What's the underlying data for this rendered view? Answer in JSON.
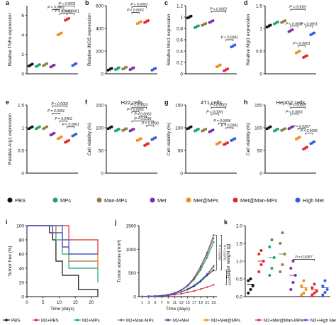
{
  "colors": {
    "PBS": "#111111",
    "MPs": "#1aa36e",
    "Man-MPs": "#8f7d3e",
    "Met": "#7b2fa6",
    "Met@MPs": "#f28c1f",
    "Met@Man-MPs": "#e3262d",
    "High Met": "#2f5fe0"
  },
  "legend_top": {
    "items": [
      {
        "key": "PBS",
        "label": "PBS"
      },
      {
        "key": "MPs",
        "label": "MPs"
      },
      {
        "key": "Man-MPs",
        "label": "Man-MPs"
      },
      {
        "key": "Met",
        "label": "Met"
      },
      {
        "key": "Met@MPs",
        "label": "Met@MPs"
      },
      {
        "key": "Met@Man-MPs",
        "label": "Met@Man-MPs"
      },
      {
        "key": "High Met",
        "label": "High Met"
      }
    ]
  },
  "legend_bottom": {
    "items": [
      {
        "key": "PBS",
        "label": "PBS"
      },
      {
        "key": "MPs",
        "label": "M2+PBS"
      },
      {
        "key": "Man-MPs",
        "label": "M2+MPs"
      },
      {
        "key": "Met",
        "label": "M2+Man-MPs"
      },
      {
        "key": "Met@MPs",
        "label": "M2+Met"
      },
      {
        "key": "Met@Man-MPs",
        "label": "M2+Met@MPs"
      },
      {
        "key": "High Met",
        "label": "M2+Met@Man-MPs"
      },
      {
        "key": "High Met",
        "label": "M2+High Met"
      }
    ]
  },
  "chart_data": [
    {
      "id": "a",
      "type": "scatter",
      "letter": "a",
      "title": "",
      "ylabel": "Relative TNFα expression",
      "ylim": [
        0,
        7
      ],
      "yticks": [
        0,
        2,
        4,
        6
      ],
      "values": [
        0.9,
        0.85,
        0.95,
        0.8,
        4.1,
        5.6,
        0.95
      ],
      "pvals": [
        {
          "from": 4,
          "to": 5,
          "level": 6.2,
          "text": "P < 0.0001"
        },
        {
          "from": 3,
          "to": 4,
          "level": 6.6,
          "text": "P < 0.0001"
        },
        {
          "from": 5,
          "to": 6,
          "level": 6.2,
          "text": "P < 0.0001"
        },
        {
          "from": 4,
          "to": 6,
          "level": 6.95,
          "text": "P < 0.0001"
        }
      ]
    },
    {
      "id": "b",
      "type": "scatter",
      "letter": "b",
      "title": "",
      "ylabel": "Relative iNOS expression",
      "ylim": [
        0,
        600
      ],
      "yticks": [
        0,
        200,
        400,
        600
      ],
      "values": [
        40,
        45,
        50,
        45,
        450,
        460,
        40
      ],
      "pvals": [
        {
          "from": 3,
          "to": 4,
          "level": 540,
          "text": "P < 0.0001"
        },
        {
          "from": 3,
          "to": 5,
          "level": 590,
          "text": "P < 0.0001"
        }
      ]
    },
    {
      "id": "c",
      "type": "scatter",
      "letter": "c",
      "title": "",
      "ylabel": "Relative Mrc1 expression",
      "ylim": [
        0,
        1.2
      ],
      "yticks": [
        0,
        0.2,
        0.4,
        0.6,
        0.8,
        1.0,
        1.2
      ],
      "values": [
        1.0,
        0.83,
        0.87,
        0.92,
        0.14,
        0.07,
        0.49
      ],
      "pvals": [
        {
          "from": 3,
          "to": 5,
          "level": 1.1,
          "text": "P < 0.0001"
        },
        {
          "from": 5,
          "to": 6,
          "level": 0.6,
          "text": "P < 0.0001"
        }
      ]
    },
    {
      "id": "d",
      "type": "scatter",
      "letter": "d",
      "title": "",
      "ylabel": "Relative Mgl1 expression",
      "ylim": [
        0,
        1.5
      ],
      "yticks": [
        0,
        0.5,
        1.0,
        1.5
      ],
      "values": [
        1.05,
        1.12,
        1.15,
        0.95,
        0.48,
        0.38,
        0.88
      ],
      "pvals": [
        {
          "from": 3,
          "to": 5,
          "level": 1.42,
          "text": "P < 0.0001"
        },
        {
          "from": 3,
          "to": 4,
          "level": 1.05,
          "text": "P < 0.0001"
        },
        {
          "from": 4,
          "to": 5,
          "level": 0.62,
          "text": "P < 0.0001"
        },
        {
          "from": 5,
          "to": 6,
          "level": 1.05,
          "text": "P < 0.0001"
        }
      ]
    },
    {
      "id": "e",
      "type": "scatter",
      "letter": "e",
      "title": "",
      "ylabel": "Relative Arg1 expression",
      "ylim": [
        0,
        1.5
      ],
      "yticks": [
        0,
        0.5,
        1.0,
        1.5
      ],
      "values": [
        1.0,
        1.0,
        1.0,
        0.86,
        0.78,
        0.7,
        0.84
      ],
      "pvals": [
        {
          "from": 3,
          "to": 5,
          "level": 1.48,
          "text": "P < 0.0001"
        },
        {
          "from": 3,
          "to": 4,
          "level": 1.32,
          "text": "P = 0.0001"
        },
        {
          "from": 4,
          "to": 5,
          "level": 1.15,
          "text": "P = 0.0463"
        },
        {
          "from": 5,
          "to": 6,
          "level": 1.02,
          "text": "P < 0.0001"
        }
      ]
    },
    {
      "id": "f",
      "type": "scatter",
      "letter": "f",
      "title": "H22 cells",
      "ylabel": "Cell viability (%)",
      "ylim": [
        0,
        150
      ],
      "yticks": [
        0,
        50,
        100,
        150
      ],
      "values": [
        100,
        95,
        96,
        95,
        74,
        63,
        76
      ],
      "pvals": [
        {
          "from": 3,
          "to": 5,
          "level": 145,
          "text": "P = 0.0023"
        },
        {
          "from": 3,
          "to": 4,
          "level": 135,
          "text": "P < 0.0001"
        },
        {
          "from": 4,
          "to": 5,
          "level": 125,
          "text": "P = 0.0066"
        },
        {
          "from": 3,
          "to": 6,
          "level": 115,
          "text": "P = 0.0036"
        },
        {
          "from": 5,
          "to": 6,
          "level": 105,
          "text": "P = 0.0093"
        }
      ]
    },
    {
      "id": "g",
      "type": "scatter",
      "letter": "g",
      "title": "4T1 cells",
      "ylabel": "Cell viability (%)",
      "ylim": [
        0,
        150
      ],
      "yticks": [
        0,
        50,
        100,
        150
      ],
      "values": [
        100,
        95,
        95,
        93,
        66,
        65,
        74
      ],
      "pvals": [
        {
          "from": 3,
          "to": 5,
          "level": 145,
          "text": "P < 0.0001"
        },
        {
          "from": 3,
          "to": 4,
          "level": 130,
          "text": "P < 0.0001"
        },
        {
          "from": 4,
          "to": 5,
          "level": 110,
          "text": "P = 0.0406"
        },
        {
          "from": 5,
          "to": 6,
          "level": 100,
          "text": "P = 0.0001"
        }
      ]
    },
    {
      "id": "h",
      "type": "scatter",
      "letter": "h",
      "title": "HepG2 cells",
      "ylabel": "Cell viability (%)",
      "ylim": [
        0,
        150
      ],
      "yticks": [
        0,
        50,
        100,
        150
      ],
      "values": [
        100,
        95,
        96,
        100,
        77,
        55,
        67
      ],
      "pvals": [
        {
          "from": 3,
          "to": 5,
          "level": 145,
          "text": "P < 0.0001"
        },
        {
          "from": 3,
          "to": 4,
          "level": 130,
          "text": "P < 0.0001"
        },
        {
          "from": 4,
          "to": 5,
          "level": 98,
          "text": "P = 0.0257"
        },
        {
          "from": 5,
          "to": 6,
          "level": 88,
          "text": "P = 0.0095"
        }
      ]
    },
    {
      "id": "i",
      "type": "line",
      "letter": "i",
      "title": "",
      "xlabel": "Time (days)",
      "ylabel": "Tumor free (%)",
      "xlim": [
        0,
        22
      ],
      "ylim": [
        0,
        100
      ],
      "xticks": [
        0,
        5,
        10,
        15,
        20
      ],
      "yticks": [
        0,
        20,
        40,
        60,
        80,
        100
      ],
      "series": [
        {
          "key": "PBS",
          "values": [
            100,
            100,
            90,
            80,
            50,
            30,
            30,
            10,
            0
          ]
        },
        {
          "key": "MPs",
          "values": [
            100,
            100,
            100,
            90,
            80,
            60,
            40,
            40,
            20
          ]
        },
        {
          "key": "Man-MPs",
          "values": [
            100,
            100,
            100,
            100,
            90,
            70,
            50,
            50,
            40
          ]
        },
        {
          "key": "Met",
          "values": [
            100,
            100,
            100,
            90,
            90,
            70,
            60,
            60,
            40
          ]
        },
        {
          "key": "Met@MPs",
          "values": [
            100,
            100,
            100,
            100,
            100,
            80,
            60,
            60,
            40
          ]
        },
        {
          "key": "Met@Man-MPs",
          "values": [
            100,
            100,
            100,
            100,
            100,
            100,
            80,
            80,
            60
          ]
        },
        {
          "key": "High Met",
          "values": [
            100,
            100,
            100,
            100,
            100,
            80,
            60,
            60,
            60
          ]
        }
      ],
      "x": [
        0,
        6,
        7,
        8,
        9,
        11,
        13,
        16,
        22
      ]
    },
    {
      "id": "j",
      "type": "line",
      "letter": "j",
      "title": "",
      "xlabel": "Time (days)",
      "ylabel": "Tumor volume (mm³)",
      "xlim": [
        0,
        24
      ],
      "ylim": [
        0,
        1500
      ],
      "xticks": [
        1,
        3,
        5,
        7,
        9,
        11,
        13,
        15,
        17,
        19,
        21,
        23
      ],
      "yticks": [
        0,
        500,
        1000,
        1500
      ],
      "x": [
        1,
        3,
        5,
        7,
        9,
        11,
        13,
        15,
        17,
        19,
        21,
        23
      ],
      "series": [
        {
          "key": "PBS",
          "values": [
            5,
            8,
            12,
            20,
            35,
            60,
            100,
            150,
            220,
            320,
            450,
            560
          ]
        },
        {
          "key": "MPs",
          "values": [
            5,
            9,
            14,
            24,
            42,
            75,
            130,
            220,
            360,
            560,
            820,
            1150
          ]
        },
        {
          "key": "Man-MPs",
          "values": [
            5,
            9,
            14,
            24,
            42,
            75,
            135,
            230,
            380,
            600,
            880,
            1230
          ]
        },
        {
          "key": "Met",
          "values": [
            5,
            9,
            14,
            24,
            44,
            80,
            140,
            240,
            400,
            640,
            930,
            1300
          ]
        },
        {
          "key": "Met@MPs",
          "values": [
            5,
            8,
            12,
            20,
            36,
            62,
            105,
            160,
            240,
            340,
            470,
            620
          ]
        },
        {
          "key": "Met@Man-MPs",
          "values": [
            5,
            7,
            10,
            15,
            25,
            40,
            60,
            90,
            120,
            160,
            200,
            250
          ]
        },
        {
          "key": "High Met",
          "values": [
            5,
            8,
            12,
            20,
            35,
            60,
            100,
            160,
            240,
            340,
            480,
            650
          ]
        }
      ],
      "pvals": [
        {
          "text": "P = 0.0060"
        },
        {
          "text": "P = 0.0076"
        },
        {
          "text": "P = 0.0005"
        }
      ]
    },
    {
      "id": "k",
      "type": "scatter",
      "letter": "k",
      "title": "",
      "ylabel": "Tumor weight (g)",
      "ylim": [
        0,
        2.0
      ],
      "yticks": [
        0,
        0.5,
        1.0,
        1.5,
        2.0
      ],
      "values": [
        0.35,
        1.0,
        1.1,
        1.2,
        0.6,
        0.25,
        0.2,
        0.25
      ],
      "pvals": [
        {
          "from": 4,
          "to": 6,
          "level": 1.05,
          "text": "P = 0.0257"
        }
      ]
    }
  ]
}
